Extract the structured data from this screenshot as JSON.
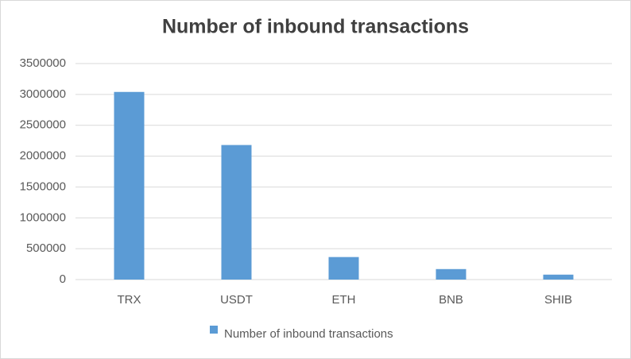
{
  "chart_data": {
    "type": "bar",
    "title": "Number of inbound transactions",
    "categories": [
      "TRX",
      "USDT",
      "ETH",
      "BNB",
      "SHIB"
    ],
    "series": [
      {
        "name": "Number of inbound transactions",
        "color": "#5b9bd5",
        "values": [
          3040000,
          2180000,
          365000,
          170000,
          80000
        ]
      }
    ],
    "ylim": [
      0,
      3500000
    ],
    "yticks": [
      0,
      500000,
      1000000,
      1500000,
      2000000,
      2500000,
      3000000,
      3500000
    ],
    "grid": true,
    "legend": "bottom"
  }
}
